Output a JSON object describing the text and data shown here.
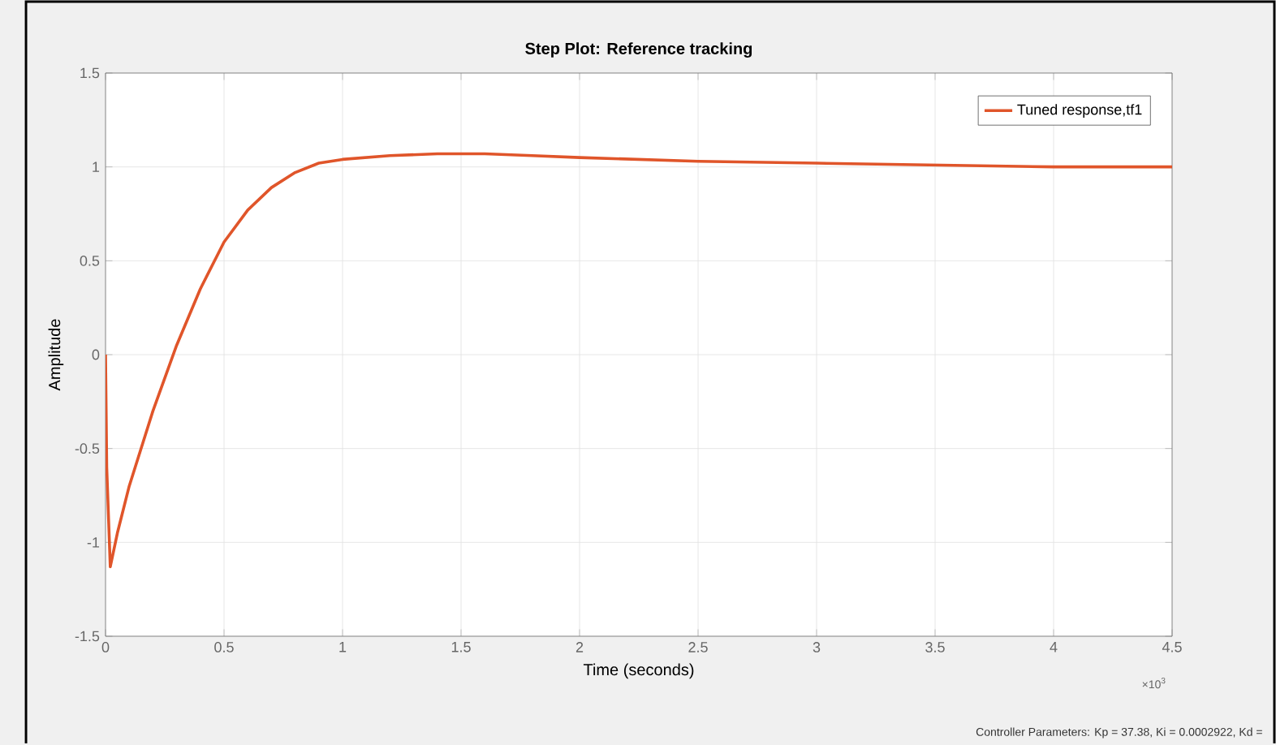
{
  "chart_data": {
    "type": "line",
    "title": "Step Plot: Reference tracking",
    "xlabel": "Time (seconds)",
    "ylabel": "Amplitude",
    "x": [
      0,
      0.005,
      0.02,
      0.05,
      0.1,
      0.2,
      0.3,
      0.4,
      0.5,
      0.6,
      0.7,
      0.8,
      0.9,
      1.0,
      1.2,
      1.4,
      1.6,
      1.8,
      2.0,
      2.5,
      3.0,
      3.5,
      4.0,
      4.5
    ],
    "series": [
      {
        "name": "Tuned response,tf1",
        "color": "#e0552a",
        "values": [
          0,
          -0.6,
          -1.13,
          -0.95,
          -0.7,
          -0.3,
          0.05,
          0.35,
          0.6,
          0.77,
          0.89,
          0.97,
          1.02,
          1.04,
          1.06,
          1.07,
          1.07,
          1.06,
          1.05,
          1.03,
          1.02,
          1.01,
          1.0,
          1.0
        ]
      }
    ],
    "xlim": [
      0,
      4.5
    ],
    "ylim": [
      -1.5,
      1.5
    ],
    "xticks": [
      0,
      0.5,
      1,
      1.5,
      2,
      2.5,
      3,
      3.5,
      4,
      4.5
    ],
    "yticks": [
      -1.5,
      -1,
      -0.5,
      0,
      0.5,
      1,
      1.5
    ],
    "grid": true,
    "legend": "top right",
    "marker": "none",
    "line_style": "solid",
    "annotations": [
      "×10$^{3}$",
      "Controller Parameters: Kp = 37.38, Ki = 0.0002922, Kd ="
    ]
  }
}
